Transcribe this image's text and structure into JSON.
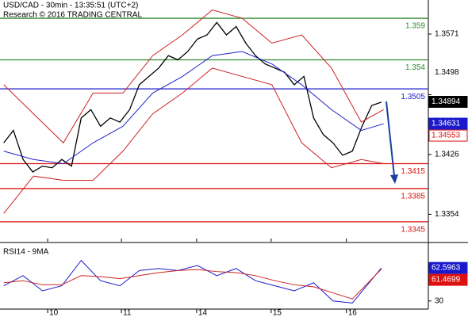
{
  "chart_data": [
    {
      "type": "line",
      "title": "USD/CAD - 30min - 13:35:51 (UTC+2)",
      "subtitle": "Research © 2016 TRADING CENTRAL",
      "xlim": [
        0,
        5.75
      ],
      "ylim": [
        1.3321,
        1.3612
      ],
      "yticks": [
        1.3571,
        1.3498,
        1.3426,
        1.3354
      ],
      "series": [
        {
          "color": "#000000",
          "x": [
            0.05,
            0.18,
            0.31,
            0.44,
            0.57,
            0.7,
            0.83,
            0.96,
            1.09,
            1.22,
            1.35,
            1.48,
            1.61,
            1.74,
            1.87,
            2.0,
            2.13,
            2.26,
            2.39,
            2.52,
            2.65,
            2.78,
            2.91,
            3.04,
            3.17,
            3.3,
            3.43,
            3.56,
            3.69,
            3.82,
            3.95,
            4.08,
            4.21,
            4.34,
            4.47,
            4.6,
            4.73,
            4.86,
            4.99,
            5.12
          ],
          "values": [
            1.344,
            1.3455,
            1.342,
            1.3405,
            1.3412,
            1.341,
            1.342,
            1.3412,
            1.347,
            1.348,
            1.346,
            1.347,
            1.3465,
            1.348,
            1.351,
            1.352,
            1.353,
            1.3545,
            1.354,
            1.355,
            1.3565,
            1.357,
            1.3585,
            1.357,
            1.358,
            1.356,
            1.3545,
            1.3535,
            1.353,
            1.3525,
            1.351,
            1.352,
            1.347,
            1.345,
            1.344,
            1.3425,
            1.343,
            1.346,
            1.3485,
            1.3489
          ]
        },
        {
          "color": "#2222cc",
          "x": [
            0.05,
            0.45,
            0.85,
            1.25,
            1.65,
            2.05,
            2.45,
            2.85,
            3.25,
            3.65,
            4.05,
            4.45,
            4.85,
            5.15
          ],
          "values": [
            1.343,
            1.342,
            1.3415,
            1.344,
            1.346,
            1.35,
            1.352,
            1.3545,
            1.355,
            1.3535,
            1.351,
            1.348,
            1.3455,
            1.3463
          ]
        },
        {
          "color": "#cc2222",
          "x": [
            0.05,
            0.45,
            0.85,
            1.25,
            1.65,
            2.05,
            2.45,
            2.85,
            3.25,
            3.65,
            4.05,
            4.45,
            4.85,
            5.15
          ],
          "values": [
            1.351,
            1.3475,
            1.344,
            1.35,
            1.35,
            1.3545,
            1.357,
            1.36,
            1.359,
            1.356,
            1.357,
            1.353,
            1.3465,
            1.348
          ]
        },
        {
          "color": "#cc2222",
          "x": [
            0.05,
            0.45,
            0.85,
            1.25,
            1.65,
            2.05,
            2.45,
            2.85,
            3.25,
            3.65,
            4.05,
            4.45,
            4.85,
            5.15
          ],
          "values": [
            1.3355,
            1.34,
            1.3395,
            1.3395,
            1.343,
            1.3475,
            1.35,
            1.353,
            1.352,
            1.351,
            1.344,
            1.341,
            1.342,
            1.3415
          ]
        }
      ],
      "levels": [
        {
          "value": 1.359,
          "color": "#2e8b2e"
        },
        {
          "value": 1.354,
          "color": "#2e8b2e"
        },
        {
          "value": 1.3505,
          "color": "#1a1acc"
        },
        {
          "value": 1.3415,
          "color": "#dd1111"
        },
        {
          "value": 1.3385,
          "color": "#dd1111"
        },
        {
          "value": 1.3345,
          "color": "#dd1111"
        }
      ],
      "last_values": [
        {
          "value": 1.34894,
          "color": "#000000"
        },
        {
          "value": 1.34631,
          "color": "#1a1acc"
        },
        {
          "value": 1.34553,
          "color": "#dd1111"
        }
      ]
    },
    {
      "type": "line",
      "title": "RSI14 - 9MA",
      "xlim": [
        0,
        5.75
      ],
      "xticks": [
        {
          "value": 0.64,
          "label": "10"
        },
        {
          "value": 1.63,
          "label": "11"
        },
        {
          "value": 2.64,
          "label": "14"
        },
        {
          "value": 3.64,
          "label": "15"
        },
        {
          "value": 4.65,
          "label": "16"
        }
      ],
      "ylim": [
        22,
        83
      ],
      "yticks": [
        30
      ],
      "series": [
        {
          "color": "#1a1acc",
          "x": [
            0.05,
            0.31,
            0.57,
            0.83,
            1.09,
            1.35,
            1.61,
            1.87,
            2.13,
            2.39,
            2.65,
            2.91,
            3.17,
            3.43,
            3.69,
            3.95,
            4.21,
            4.47,
            4.73,
            5.12
          ],
          "values": [
            45,
            55,
            40,
            45,
            70,
            50,
            45,
            60,
            62,
            60,
            65,
            55,
            62,
            50,
            45,
            40,
            48,
            30,
            28,
            62.5963
          ]
        },
        {
          "color": "#cc2222",
          "x": [
            0.05,
            0.31,
            0.57,
            0.83,
            1.09,
            1.35,
            1.61,
            1.87,
            2.13,
            2.39,
            2.65,
            2.91,
            3.17,
            3.43,
            3.69,
            3.95,
            4.21,
            4.47,
            4.73,
            5.12
          ],
          "values": [
            48,
            50,
            46,
            46,
            55,
            54,
            52,
            55,
            58,
            60,
            61,
            59,
            58,
            55,
            50,
            46,
            44,
            38,
            32,
            61.4699
          ]
        }
      ],
      "last_values": [
        {
          "value": 62.5963,
          "color": "#1a1acc"
        },
        {
          "value": 61.4699,
          "color": "#dd1111"
        }
      ]
    }
  ]
}
